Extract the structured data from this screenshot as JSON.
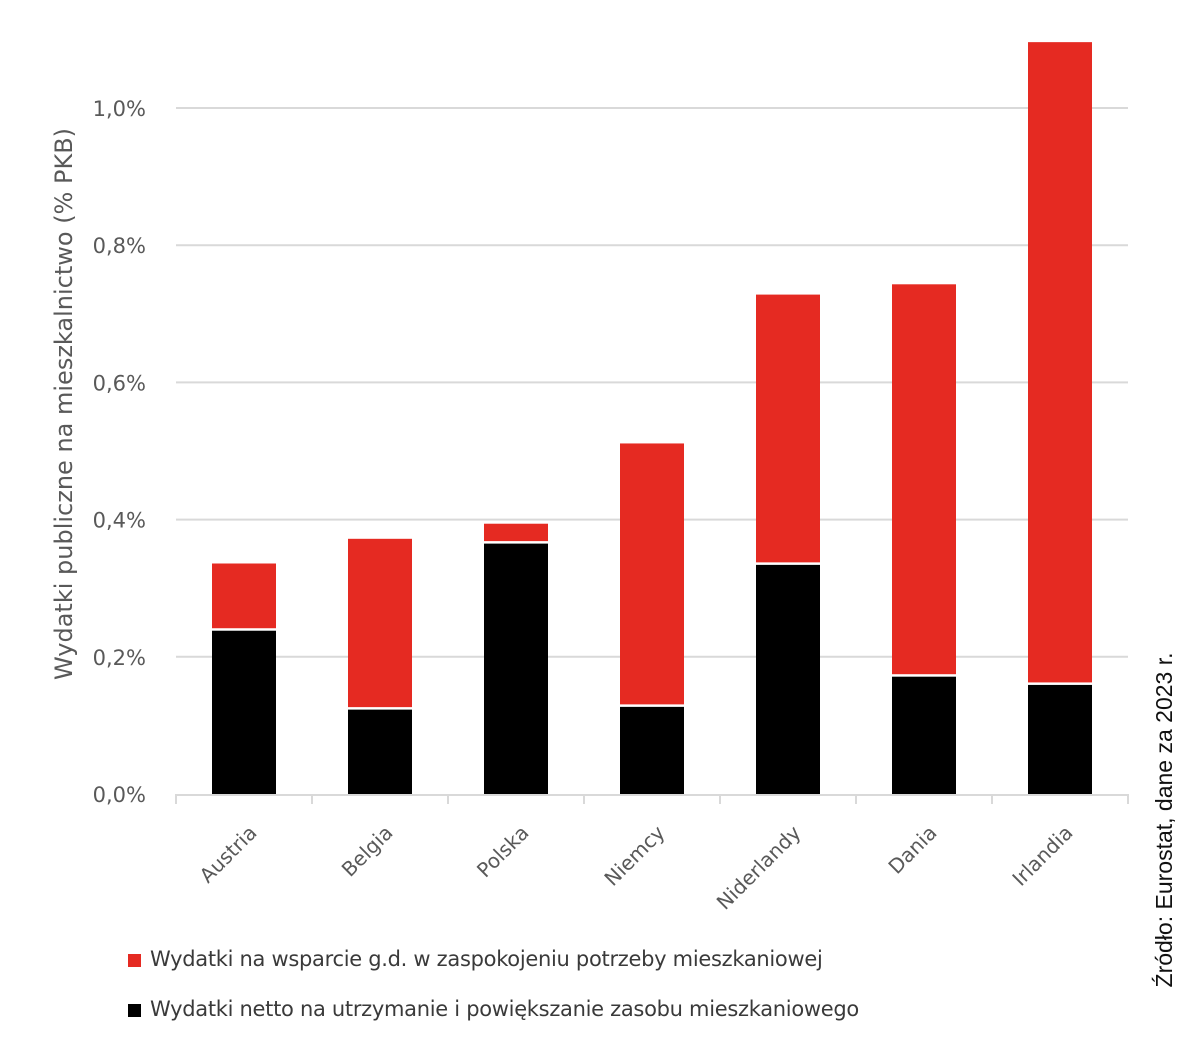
{
  "colors": {
    "support": "#E52A22",
    "net": "#000000",
    "grid": "#D9D9D9",
    "text": "#595959"
  },
  "chart_data": {
    "type": "bar",
    "stacked": true,
    "title": "",
    "xlabel": "",
    "ylabel": "Wydatki publiczne na mieszkalnictwo (% PKB)",
    "categories": [
      "Austria",
      "Belgia",
      "Polska",
      "Niemcy",
      "Niderlandy",
      "Dania",
      "Irlandia"
    ],
    "series": [
      {
        "name": "Wydatki netto na utrzymanie i powiększanie zasobu mieszkaniowego",
        "color": "#000000",
        "values": [
          0.238,
          0.123,
          0.365,
          0.127,
          0.334,
          0.171,
          0.159
        ]
      },
      {
        "name": "Wydatki na wsparcie g.d. w zaspokojeniu potrzeby mieszkaniowej",
        "color": "#E52A22",
        "values": [
          0.098,
          0.249,
          0.029,
          0.384,
          0.394,
          0.572,
          0.937
        ]
      }
    ],
    "ylim": [
      0,
      1.0
    ],
    "yticks": [
      0,
      0.2,
      0.4,
      0.6,
      0.8,
      1.0
    ],
    "ytick_labels": [
      "0,0%",
      "0,2%",
      "0,4%",
      "0,6%",
      "0,8%",
      "1,0%"
    ],
    "grid": true,
    "legend_position": "bottom-left",
    "annotation": "Źródło: Eurostat, dane za 2023 r."
  },
  "legend": {
    "items": [
      {
        "label": "Wydatki na wsparcie g.d. w zaspokojeniu potrzeby mieszkaniowej",
        "color": "#E52A22"
      },
      {
        "label": "Wydatki netto na utrzymanie i powiększanie zasobu mieszkaniowego",
        "color": "#000000"
      }
    ]
  },
  "source": "Źródło: Eurostat, dane za 2023 r."
}
